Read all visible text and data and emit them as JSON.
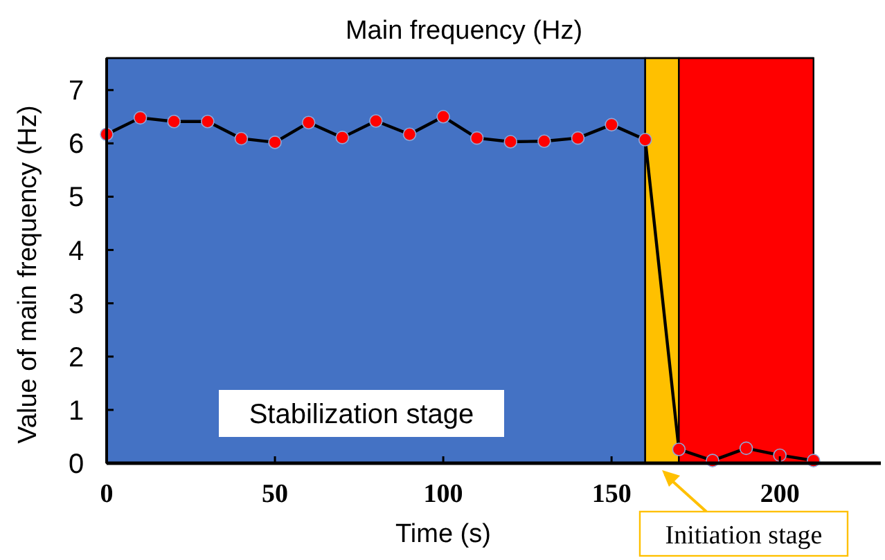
{
  "chart_data": {
    "type": "line",
    "title": "Main frequency (Hz)",
    "xlabel": "Time (s)",
    "ylabel": "Value of main frequency (Hz)",
    "x": [
      0,
      10,
      20,
      30,
      40,
      50,
      60,
      70,
      80,
      90,
      100,
      110,
      120,
      130,
      140,
      150,
      160,
      170,
      180,
      190,
      200,
      210
    ],
    "series": [
      {
        "color": "#ff0000",
        "values": [
          6.17,
          6.48,
          6.41,
          6.41,
          6.09,
          6.02,
          6.39,
          6.11,
          6.42,
          6.17,
          6.5,
          6.1,
          6.03,
          6.04,
          6.1,
          6.35,
          6.07,
          0.26,
          0.05,
          0.28,
          0.15,
          0.05
        ]
      }
    ],
    "marker": "circle",
    "line_style": "solid",
    "xlim": [
      0,
      230
    ],
    "xticks": [
      0,
      50,
      100,
      150,
      200
    ],
    "ylim": [
      0,
      7.6
    ],
    "yticks": [
      0,
      1,
      2,
      3,
      4,
      5,
      6,
      7
    ],
    "bands": [
      {
        "axis": "x",
        "from": 0,
        "to": 160,
        "label": "Stabilization stage",
        "color": "#4472c4"
      },
      {
        "axis": "x",
        "from": 160,
        "to": 170,
        "label": "Initiation stage",
        "color": "#ffc000"
      },
      {
        "axis": "x",
        "from": 170,
        "to": 210,
        "color": "#ff0000"
      }
    ],
    "grid": false
  }
}
